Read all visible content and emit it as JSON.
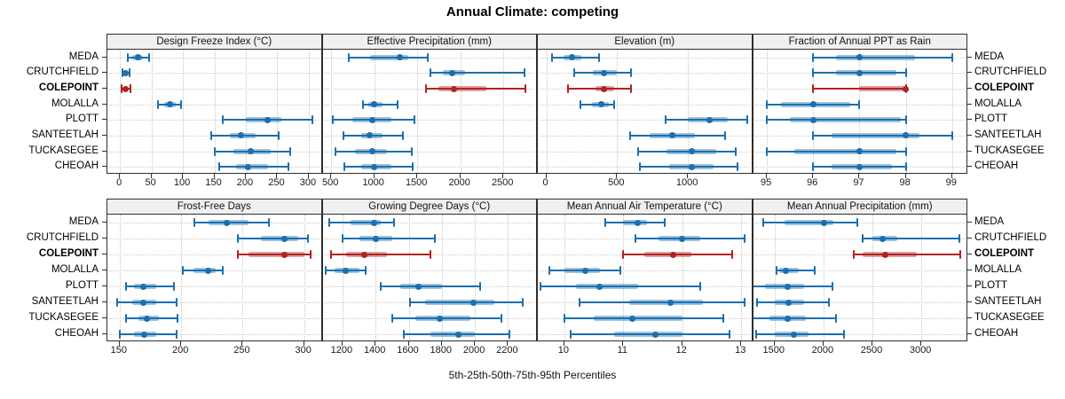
{
  "title": "Annual Climate: competing",
  "xlabel": "5th-25th-50th-75th-95th Percentiles",
  "sites": [
    "MEDA",
    "CRUTCHFIELD",
    "COLEPOINT",
    "MOLALLA",
    "PLOTT",
    "SANTEETLAH",
    "TUCKASEGEE",
    "CHEOAH"
  ],
  "highlight_site": "COLEPOINT",
  "percentile_labels": [
    "5th",
    "25th",
    "50th",
    "75th",
    "95th"
  ],
  "colors": {
    "series": "#1A6FAF",
    "highlight": "#B22222",
    "strip_bg": "#F0F0F0",
    "grid": "#C6C6C6",
    "border": "#2E2E2E"
  },
  "chart_data": {
    "type": "dotplot",
    "note": "Each row shows [5th,25th,50th,75th,95th] percentiles; thin line 5th-95th, thick band 25th-75th, dot 50th",
    "categories": [
      "MEDA",
      "CRUTCHFIELD",
      "COLEPOINT",
      "MOLALLA",
      "PLOTT",
      "SANTEETLAH",
      "TUCKASEGEE",
      "CHEOAH"
    ],
    "legend_position": "none",
    "grid": "dotted",
    "panels": [
      {
        "title": "Design Freeze Index (°C)",
        "xlim": [
          -20,
          322
        ],
        "ticks": [
          0,
          50,
          100,
          150,
          200,
          250,
          300
        ],
        "values": {
          "MEDA": [
            13,
            20,
            28,
            37,
            46
          ],
          "CRUTCHFIELD": [
            4,
            6,
            9,
            12,
            15
          ],
          "COLEPOINT": [
            3,
            6,
            9,
            13,
            16
          ],
          "MOLALLA": [
            60,
            70,
            80,
            88,
            97
          ],
          "PLOTT": [
            163,
            200,
            235,
            257,
            306
          ],
          "SANTEETLAH": [
            145,
            175,
            192,
            215,
            252
          ],
          "TUCKASEGEE": [
            150,
            180,
            208,
            240,
            270
          ],
          "CHEOAH": [
            158,
            185,
            203,
            235,
            268
          ]
        }
      },
      {
        "title": "Effective Precipitation (mm)",
        "xlim": [
          400,
          2900
        ],
        "ticks": [
          500,
          1000,
          1500,
          2000,
          2500
        ],
        "values": {
          "MEDA": [
            700,
            950,
            1300,
            1400,
            1620
          ],
          "CRUTCHFIELD": [
            1650,
            1800,
            1900,
            2050,
            2750
          ],
          "COLEPOINT": [
            1600,
            1750,
            1930,
            2300,
            2760
          ],
          "MOLALLA": [
            870,
            930,
            1000,
            1100,
            1270
          ],
          "PLOTT": [
            520,
            750,
            980,
            1200,
            1470
          ],
          "SANTEETLAH": [
            640,
            850,
            950,
            1100,
            1330
          ],
          "TUCKASEGEE": [
            550,
            780,
            980,
            1150,
            1440
          ],
          "CHEOAH": [
            650,
            850,
            1000,
            1200,
            1450
          ]
        }
      },
      {
        "title": "Elevation (m)",
        "xlim": [
          -60,
          1460
        ],
        "ticks": [
          0,
          500,
          1000
        ],
        "values": {
          "MEDA": [
            40,
            120,
            180,
            250,
            370
          ],
          "CRUTCHFIELD": [
            200,
            330,
            410,
            500,
            600
          ],
          "COLEPOINT": [
            150,
            350,
            410,
            480,
            600
          ],
          "MOLALLA": [
            240,
            320,
            390,
            440,
            480
          ],
          "PLOTT": [
            840,
            1000,
            1150,
            1280,
            1420
          ],
          "SANTEETLAH": [
            590,
            730,
            890,
            1050,
            1260
          ],
          "TUCKASEGEE": [
            650,
            850,
            1030,
            1200,
            1340
          ],
          "CHEOAH": [
            660,
            870,
            1030,
            1180,
            1350
          ]
        }
      },
      {
        "title": "Fraction of Annual PPT as Rain",
        "xlim": [
          94.7,
          99.35
        ],
        "ticks": [
          95,
          96,
          97,
          98,
          99
        ],
        "values": {
          "MEDA": [
            96,
            96.5,
            97,
            98.2,
            99
          ],
          "CRUTCHFIELD": [
            96,
            96.5,
            97,
            97.8,
            98
          ],
          "COLEPOINT": [
            96,
            97,
            98,
            98,
            98
          ],
          "MOLALLA": [
            95,
            95.3,
            96,
            96.8,
            97
          ],
          "PLOTT": [
            95,
            95.5,
            96,
            97.9,
            98
          ],
          "SANTEETLAH": [
            96,
            96.4,
            98,
            98.3,
            99
          ],
          "TUCKASEGEE": [
            95,
            95.6,
            97,
            97.8,
            98
          ],
          "CHEOAH": [
            96,
            96.4,
            97,
            97.7,
            98
          ]
        }
      },
      {
        "title": "Frost-Free Days",
        "xlim": [
          140,
          315
        ],
        "ticks": [
          150,
          200,
          250,
          300
        ],
        "values": {
          "MEDA": [
            211,
            222,
            237,
            255,
            271
          ],
          "CRUTCHFIELD": [
            246,
            265,
            284,
            295,
            303
          ],
          "COLEPOINT": [
            246,
            255,
            284,
            300,
            305
          ],
          "MOLALLA": [
            201,
            210,
            222,
            228,
            234
          ],
          "PLOTT": [
            155,
            162,
            169,
            180,
            194
          ],
          "SANTEETLAH": [
            148,
            160,
            169,
            180,
            196
          ],
          "TUCKASEGEE": [
            155,
            165,
            172,
            182,
            197
          ],
          "CHEOAH": [
            150,
            162,
            170,
            180,
            196
          ]
        }
      },
      {
        "title": "Growing Degree Days (°C)",
        "xlim": [
          1080,
          2380
        ],
        "ticks": [
          1200,
          1400,
          1600,
          1800,
          2000,
          2200
        ],
        "values": {
          "MEDA": [
            1120,
            1250,
            1390,
            1430,
            1510
          ],
          "CRUTCHFIELD": [
            1200,
            1300,
            1400,
            1500,
            1760
          ],
          "COLEPOINT": [
            1130,
            1220,
            1330,
            1470,
            1730
          ],
          "MOLALLA": [
            1100,
            1150,
            1220,
            1300,
            1340
          ],
          "PLOTT": [
            1430,
            1550,
            1660,
            1800,
            2030
          ],
          "SANTEETLAH": [
            1610,
            1700,
            1990,
            2120,
            2290
          ],
          "TUCKASEGEE": [
            1500,
            1640,
            1790,
            1970,
            2160
          ],
          "CHEOAH": [
            1570,
            1730,
            1900,
            2000,
            2210
          ]
        }
      },
      {
        "title": "Mean Annual Air Temperature (°C)",
        "xlim": [
          9.55,
          13.2
        ],
        "ticks": [
          10,
          11,
          12,
          13
        ],
        "values": {
          "MEDA": [
            10.7,
            11.0,
            11.25,
            11.4,
            11.7
          ],
          "CRUTCHFIELD": [
            11.2,
            11.6,
            12.0,
            12.3,
            13.05
          ],
          "COLEPOINT": [
            11.0,
            11.35,
            11.85,
            12.15,
            12.85
          ],
          "MOLALLA": [
            9.75,
            10.0,
            10.35,
            10.6,
            10.95
          ],
          "PLOTT": [
            9.6,
            10.2,
            10.6,
            11.25,
            12.3
          ],
          "SANTEETLAH": [
            10.25,
            11.1,
            11.8,
            12.35,
            13.05
          ],
          "TUCKASEGEE": [
            10.0,
            10.5,
            11.15,
            12.0,
            12.7
          ],
          "CHEOAH": [
            10.1,
            10.85,
            11.55,
            12.0,
            12.8
          ]
        }
      },
      {
        "title": "Mean Annual Precipitation (mm)",
        "xlim": [
          1280,
          3480
        ],
        "ticks": [
          1500,
          2000,
          2500,
          3000
        ],
        "values": {
          "MEDA": [
            1380,
            1600,
            2010,
            2100,
            2350
          ],
          "CRUTCHFIELD": [
            2400,
            2500,
            2600,
            2750,
            3390
          ],
          "COLEPOINT": [
            2310,
            2400,
            2630,
            2950,
            3400
          ],
          "MOLALLA": [
            1520,
            1550,
            1620,
            1750,
            1910
          ],
          "PLOTT": [
            1130,
            1400,
            1630,
            1800,
            2090
          ],
          "SANTEETLAH": [
            1320,
            1500,
            1640,
            1800,
            2060
          ],
          "TUCKASEGEE": [
            1200,
            1450,
            1630,
            1820,
            2130
          ],
          "CHEOAH": [
            1310,
            1500,
            1700,
            1850,
            2210
          ]
        }
      }
    ]
  }
}
